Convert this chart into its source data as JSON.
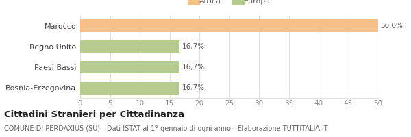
{
  "categories": [
    "Marocco",
    "Regno Unito",
    "Paesi Bassi",
    "Bosnia-Erzegovina"
  ],
  "values": [
    50.0,
    16.7,
    16.7,
    16.7
  ],
  "labels": [
    "50,0%",
    "16,7%",
    "16,7%",
    "16,7%"
  ],
  "bar_colors": [
    "#f5c08a",
    "#b5cc8e",
    "#b5cc8e",
    "#b5cc8e"
  ],
  "legend_labels": [
    "Africa",
    "Europa"
  ],
  "legend_colors": [
    "#f5c08a",
    "#b5cc8e"
  ],
  "xlim": [
    0,
    50
  ],
  "xticks": [
    0,
    5,
    10,
    15,
    20,
    25,
    30,
    35,
    40,
    45,
    50
  ],
  "title_bold": "Cittadini Stranieri per Cittadinanza",
  "subtitle": "COMUNE DI PERDAXIUS (SU) - Dati ISTAT al 1° gennaio di ogni anno - Elaborazione TUTTITALIA.IT",
  "bg_color": "#ffffff",
  "grid_color": "#e0e0e0",
  "bar_height": 0.6,
  "label_fontsize": 7.5,
  "tick_fontsize": 7.5,
  "category_fontsize": 8,
  "title_fontsize": 9.5,
  "subtitle_fontsize": 7
}
